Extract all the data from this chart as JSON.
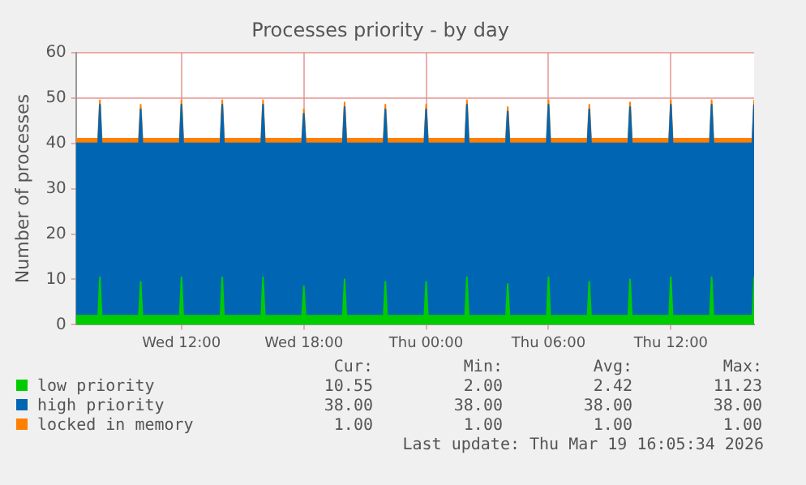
{
  "chart_data": {
    "type": "area",
    "stacked": true,
    "title": "Processes priority - by day",
    "ylabel": "Number of processes",
    "x": [
      "2026-03-18T06:50",
      "2026-03-18T07:55",
      "2026-03-18T08:00",
      "2026-03-18T08:05",
      "2026-03-18T09:55",
      "2026-03-18T10:00",
      "2026-03-18T10:05",
      "2026-03-18T11:55",
      "2026-03-18T12:00",
      "2026-03-18T12:05",
      "2026-03-18T13:55",
      "2026-03-18T14:00",
      "2026-03-18T14:05",
      "2026-03-18T15:55",
      "2026-03-18T16:00",
      "2026-03-18T16:05",
      "2026-03-18T17:55",
      "2026-03-18T18:00",
      "2026-03-18T18:05",
      "2026-03-18T19:55",
      "2026-03-18T20:00",
      "2026-03-18T20:05",
      "2026-03-18T21:55",
      "2026-03-18T22:00",
      "2026-03-18T22:05",
      "2026-03-18T23:55",
      "2026-03-19T00:00",
      "2026-03-19T00:05",
      "2026-03-19T01:55",
      "2026-03-19T02:00",
      "2026-03-19T02:05",
      "2026-03-19T03:55",
      "2026-03-19T04:00",
      "2026-03-19T04:05",
      "2026-03-19T05:55",
      "2026-03-19T06:00",
      "2026-03-19T06:05",
      "2026-03-19T07:55",
      "2026-03-19T08:00",
      "2026-03-19T08:05",
      "2026-03-19T09:55",
      "2026-03-19T10:00",
      "2026-03-19T10:05",
      "2026-03-19T11:55",
      "2026-03-19T12:00",
      "2026-03-19T12:05",
      "2026-03-19T13:55",
      "2026-03-19T14:00",
      "2026-03-19T14:05",
      "2026-03-19T16:00",
      "2026-03-19T16:05"
    ],
    "series": [
      {
        "name": "low priority",
        "color": "#00cc00",
        "values": [
          2,
          2,
          10.5,
          2,
          2,
          9.5,
          2,
          2,
          10.5,
          2,
          2,
          10.5,
          2,
          2,
          10.5,
          2,
          2,
          8.5,
          2,
          2,
          10,
          2,
          2,
          9.5,
          2,
          2,
          9.5,
          2,
          2,
          10.5,
          2,
          2,
          9,
          2,
          2,
          10.5,
          2,
          2,
          9.5,
          2,
          2,
          10,
          2,
          2,
          10.5,
          2,
          2,
          10.5,
          2,
          2,
          10.55
        ]
      },
      {
        "name": "high priority",
        "color": "#0066b3",
        "values": [
          38,
          38,
          38,
          38,
          38,
          38,
          38,
          38,
          38,
          38,
          38,
          38,
          38,
          38,
          38,
          38,
          38,
          38,
          38,
          38,
          38,
          38,
          38,
          38,
          38,
          38,
          38,
          38,
          38,
          38,
          38,
          38,
          38,
          38,
          38,
          38,
          38,
          38,
          38,
          38,
          38,
          38,
          38,
          38,
          38,
          38,
          38,
          38,
          38,
          38,
          38
        ]
      },
      {
        "name": "locked in memory",
        "color": "#ff8000",
        "values": [
          1,
          1,
          1,
          1,
          1,
          1,
          1,
          1,
          1,
          1,
          1,
          1,
          1,
          1,
          1,
          1,
          1,
          1,
          1,
          1,
          1,
          1,
          1,
          1,
          1,
          1,
          1,
          1,
          1,
          1,
          1,
          1,
          1,
          1,
          1,
          1,
          1,
          1,
          1,
          1,
          1,
          1,
          1,
          1,
          1,
          1,
          1,
          1,
          1,
          1,
          1
        ]
      }
    ],
    "xlim": [
      "2026-03-18T06:50",
      "2026-03-19T16:05"
    ],
    "xticks": [
      {
        "value": "2026-03-18T12:00",
        "label": "Wed 12:00"
      },
      {
        "value": "2026-03-18T18:00",
        "label": "Wed 18:00"
      },
      {
        "value": "2026-03-19T00:00",
        "label": "Thu 00:00"
      },
      {
        "value": "2026-03-19T06:00",
        "label": "Thu 06:00"
      },
      {
        "value": "2026-03-19T12:00",
        "label": "Thu 12:00"
      }
    ],
    "ylim": [
      0,
      60
    ],
    "yticks": [
      0,
      10,
      20,
      30,
      40,
      50,
      60
    ],
    "grid": true,
    "legend": "bottom",
    "annotations": [
      "Cur:",
      "Min:",
      "Avg:",
      "Max:",
      "10.55",
      "2.00",
      "2.42",
      "11.23",
      "38.00",
      "38.00",
      "38.00",
      "38.00",
      "1.00",
      "1.00",
      "1.00",
      "1.00",
      "Last update: Thu Mar 19 16:05:34 2026"
    ]
  }
}
